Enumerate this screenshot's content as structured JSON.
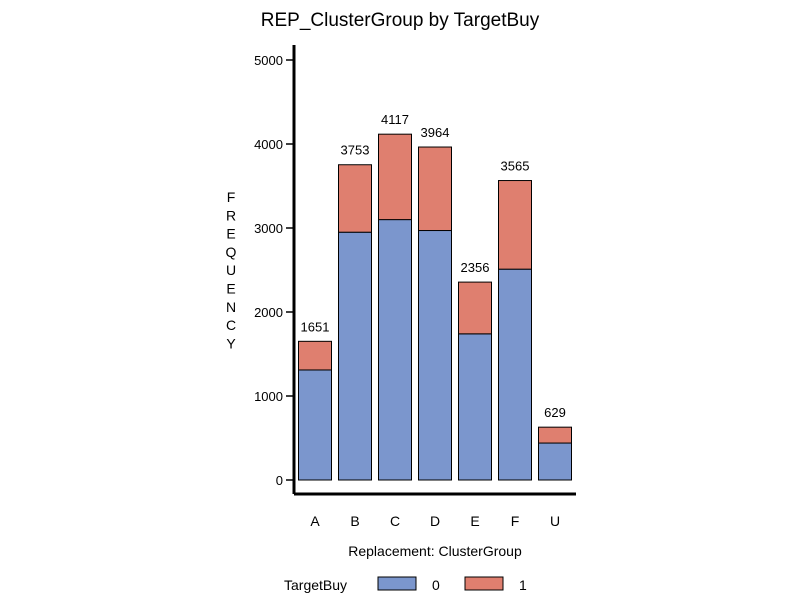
{
  "chart_data": {
    "type": "bar",
    "stacked": true,
    "title": "REP_ClusterGroup by TargetBuy",
    "xlabel": "Replacement: ClusterGroup",
    "ylabel": "FREQUENCY",
    "categories": [
      "A",
      "B",
      "C",
      "D",
      "E",
      "F",
      "U"
    ],
    "series": [
      {
        "name": "0",
        "color": "#7b96cd",
        "values": [
          1310,
          2950,
          3100,
          2970,
          1740,
          2510,
          440
        ]
      },
      {
        "name": "1",
        "color": "#df7f6f",
        "values": [
          341,
          803,
          1017,
          994,
          616,
          1055,
          189
        ]
      }
    ],
    "totals": [
      1651,
      3753,
      4117,
      3964,
      2356,
      3565,
      629
    ],
    "ylim": [
      0,
      5000
    ],
    "yticks": [
      0,
      1000,
      2000,
      3000,
      4000,
      5000
    ],
    "grid": false,
    "legend": {
      "title": "TargetBuy",
      "placement": "bottom"
    }
  }
}
